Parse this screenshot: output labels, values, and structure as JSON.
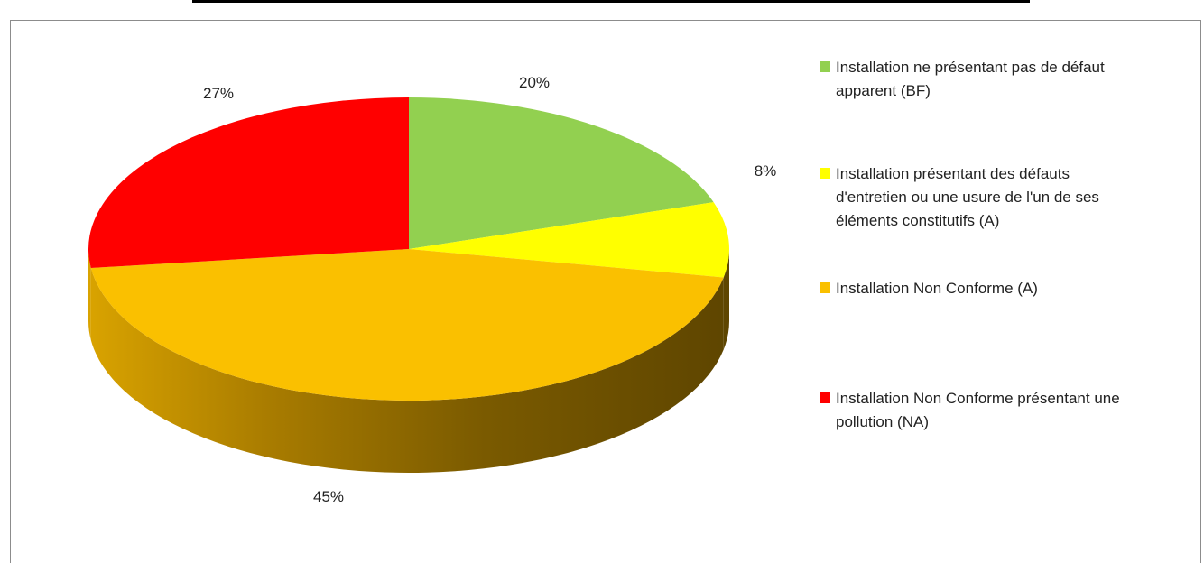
{
  "chart_data": {
    "type": "pie",
    "slices": [
      {
        "label": "Installation ne présentant pas de défaut apparent (BF)",
        "value": 20,
        "value_label": "20%",
        "color": "#92d050"
      },
      {
        "label": "Installation présentant des défauts d'entretien ou une usure de l'un de ses éléments constitutifs (A)",
        "value": 8,
        "value_label": "8%",
        "color": "#ffff00"
      },
      {
        "label": "Installation Non Conforme (A)",
        "value": 45,
        "value_label": "45%",
        "color": "#fac000"
      },
      {
        "label": "Installation Non Conforme présentant une pollution (NA)",
        "value": 27,
        "value_label": "27%",
        "color": "#ff0000"
      }
    ],
    "legend": {
      "position": "right",
      "items": [
        "Installation  ne présentant pas de défaut\napparent (BF)",
        "Installation  présentant des défauts\nd'entretien ou une usure de l'un de ses\néléments constitutifs  (A)",
        "Installation  Non Conforme (A)",
        "Installation  Non Conforme présentant une\npollution (NA)"
      ]
    },
    "style": "3d"
  }
}
